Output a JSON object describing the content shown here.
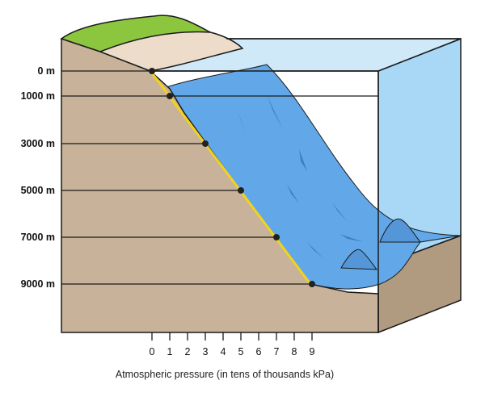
{
  "diagram": {
    "axis_caption": "Atmospheric pressure (in tens of thousands kPa)",
    "depth_levels": [
      {
        "depth": "0 m",
        "pressure": 0
      },
      {
        "depth": "1000 m",
        "pressure": 1
      },
      {
        "depth": "3000 m",
        "pressure": 3
      },
      {
        "depth": "5000 m",
        "pressure": 5
      },
      {
        "depth": "7000 m",
        "pressure": 7
      },
      {
        "depth": "9000 m",
        "pressure": 9
      }
    ],
    "pressure_ticks": [
      "0",
      "1",
      "2",
      "3",
      "4",
      "5",
      "6",
      "7",
      "8",
      "9"
    ],
    "colors": {
      "soil": "#c8b39a",
      "grass": "#8cc63f",
      "sand": "#ecdcc9",
      "water_surface": "#cfe9f9",
      "water_side": "#a8d8f5",
      "deep_water": "#62a8e8",
      "deep_water_dark": "#3f7ec2",
      "profile_line": "#f2d21b",
      "outline": "#1a1a1a"
    }
  }
}
